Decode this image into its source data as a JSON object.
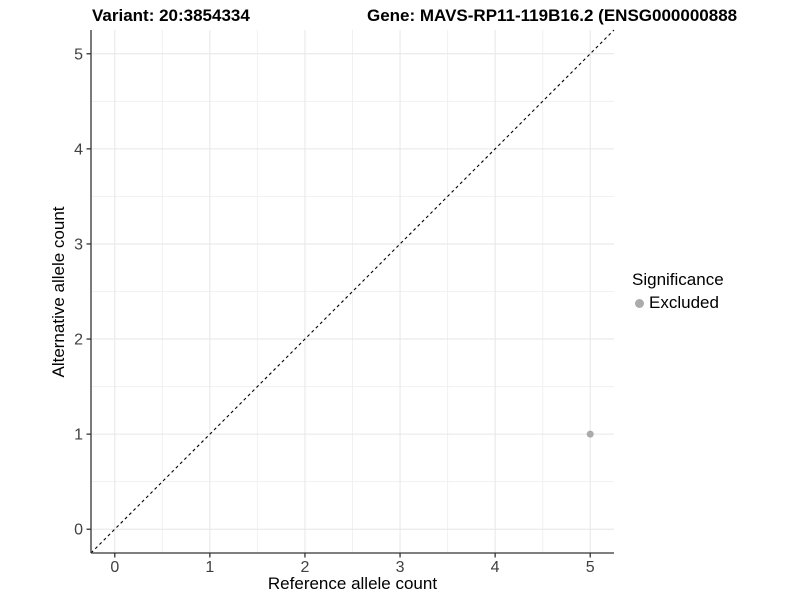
{
  "titles": {
    "variant": "Variant: 20:3854334",
    "gene": "Gene: MAVS-RP11-119B16.2 (ENSG000000888"
  },
  "chart_data": {
    "type": "scatter",
    "title": "",
    "xlabel": "Reference allele count",
    "ylabel": "Alternative allele count",
    "xlim": [
      -0.25,
      5.25
    ],
    "ylim": [
      -0.25,
      5.25
    ],
    "xticks": [
      0,
      1,
      2,
      3,
      4,
      5
    ],
    "yticks": [
      0,
      1,
      2,
      3,
      4,
      5
    ],
    "minor_step": 0.5,
    "grid": true,
    "abline": {
      "slope": 1,
      "intercept": 0,
      "linetype": "dashed",
      "color": "#000000"
    },
    "series": [
      {
        "name": "Excluded",
        "color": "#ababab",
        "points": [
          {
            "x": 5,
            "y": 1
          }
        ]
      }
    ],
    "legend": {
      "title": "Significance",
      "position": "right",
      "items": [
        {
          "label": "Excluded",
          "color": "#ababab"
        }
      ]
    }
  },
  "colors": {
    "background": "#ffffff",
    "grid_major": "#e6e6e6",
    "grid_minor": "#f1f1f1",
    "axis_line": "#333333",
    "tick_mark": "#333333",
    "tick_label": "#404040",
    "text": "#000000"
  }
}
